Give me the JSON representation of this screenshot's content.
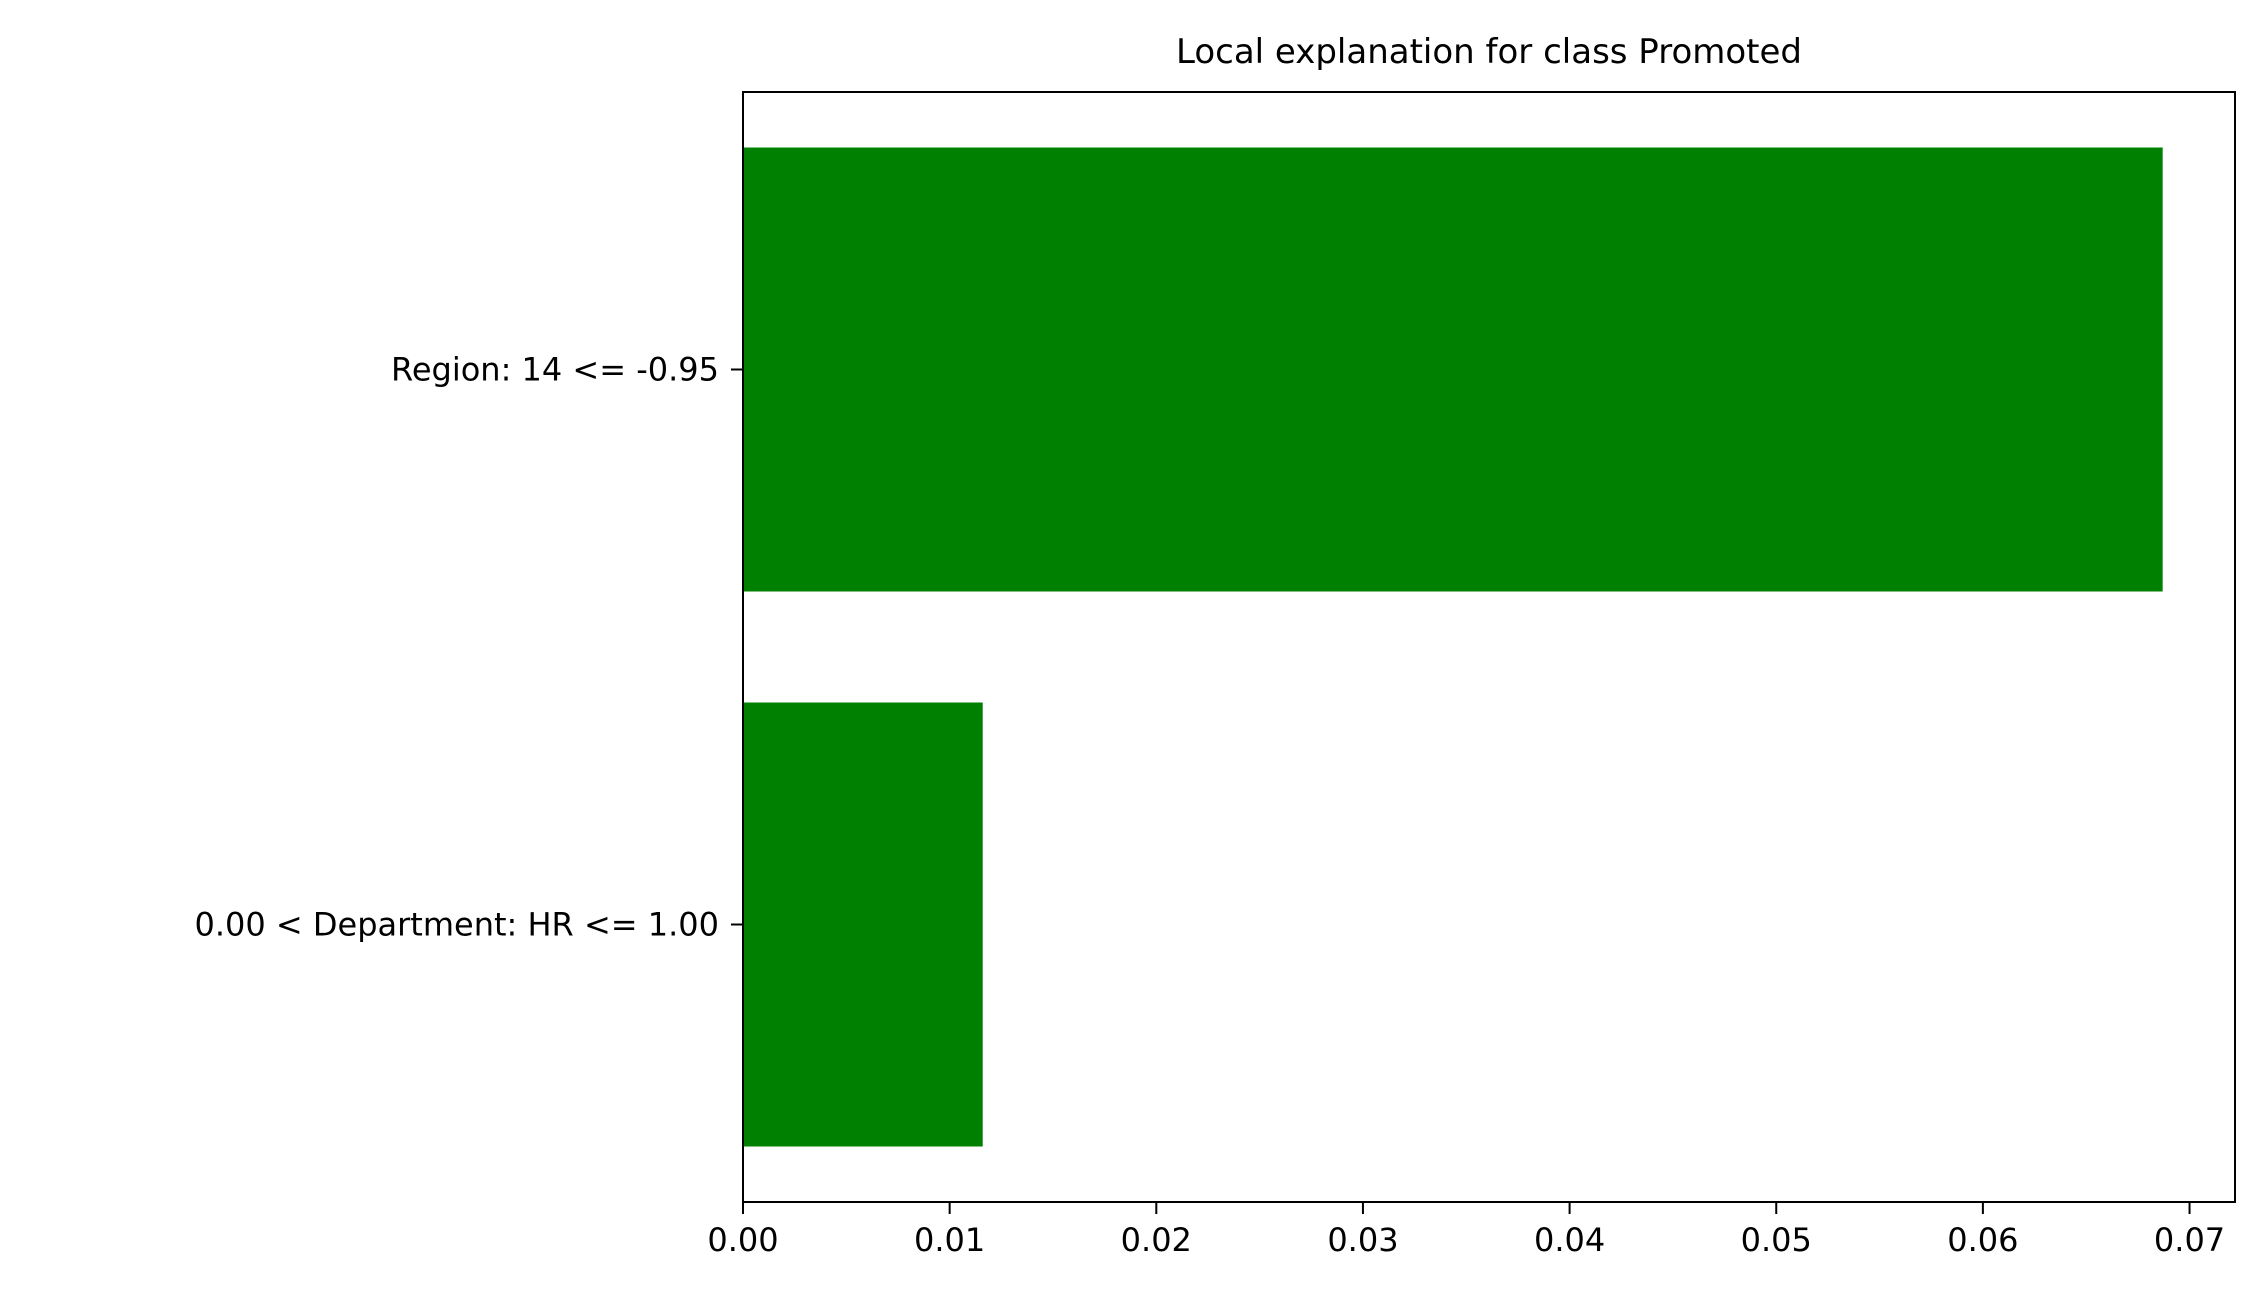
{
  "chart_data": {
    "type": "bar",
    "orientation": "horizontal",
    "title": "Local explanation for class Promoted",
    "xlabel": "",
    "ylabel": "",
    "categories": [
      "0.00 < Department: HR <= 1.00",
      "Region: 14 <= -0.95"
    ],
    "values": [
      0.0116,
      0.0687
    ],
    "xlim": [
      0.0,
      0.0722
    ],
    "xticks": [
      0.0,
      0.01,
      0.02,
      0.03,
      0.04,
      0.05,
      0.06,
      0.07
    ],
    "xtick_labels": [
      "0.00",
      "0.01",
      "0.02",
      "0.03",
      "0.04",
      "0.05",
      "0.06",
      "0.07"
    ],
    "bar_color": "#008000",
    "grid": false,
    "legend": "none"
  }
}
